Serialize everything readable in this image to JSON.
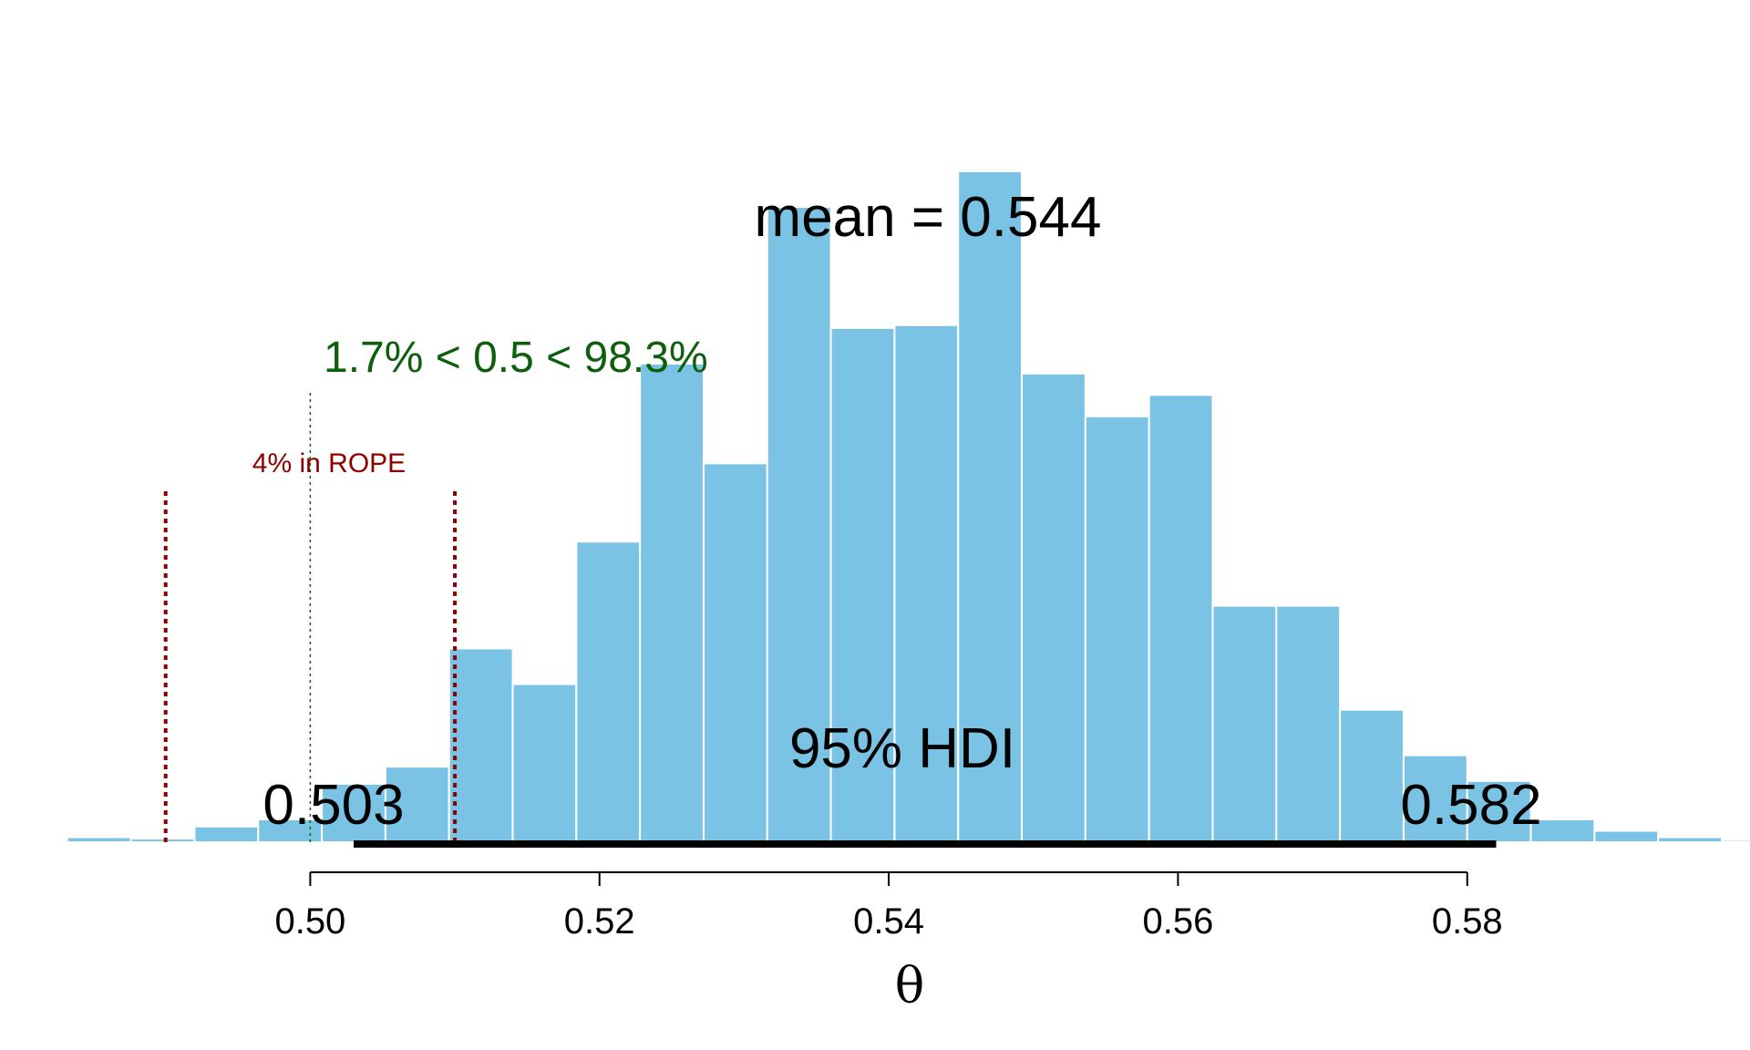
{
  "chart_data": {
    "type": "bar",
    "title": "",
    "xlabel": "θ",
    "ylabel": "",
    "xlim": [
      0.4788,
      0.5993
    ],
    "ylim": [
      0,
      0.36
    ],
    "grid": false,
    "legend": "none",
    "bin_width": 0.0044,
    "bin_start": 0.4788,
    "counts": [
      0.01,
      0.035,
      0.025,
      0.11,
      0.16,
      0.41,
      0.53,
      1.36,
      1.11,
      2.11,
      3.36,
      2.66,
      4.46,
      3.61,
      3.63,
      4.71,
      3.29,
      2.99,
      3.14,
      1.66,
      1.66,
      0.93,
      0.61,
      0.43,
      0.16,
      0.08,
      0.035,
      0.015
    ],
    "x_ticks": [
      0.5,
      0.52,
      0.54,
      0.56,
      0.58
    ],
    "x_tick_labels": [
      "0.50",
      "0.52",
      "0.54",
      "0.56",
      "0.58"
    ],
    "mean_label": "mean = 0.544",
    "hdi": {
      "low": 0.503,
      "high": 0.582,
      "label": "95% HDI",
      "low_label": "0.503",
      "high_label": "0.582"
    },
    "comparison": {
      "value": 0.5,
      "label": "1.7% < 0.5 < 98.3%"
    },
    "rope": {
      "low": 0.49,
      "high": 0.51,
      "label": "4% in ROPE"
    }
  },
  "colors": {
    "bars": "#7ac3e5",
    "bar_edge": "#ffffff",
    "hdi": "#000000",
    "comparison": "#0d5f0d",
    "rope": "#8b0000",
    "text": "#000000"
  }
}
